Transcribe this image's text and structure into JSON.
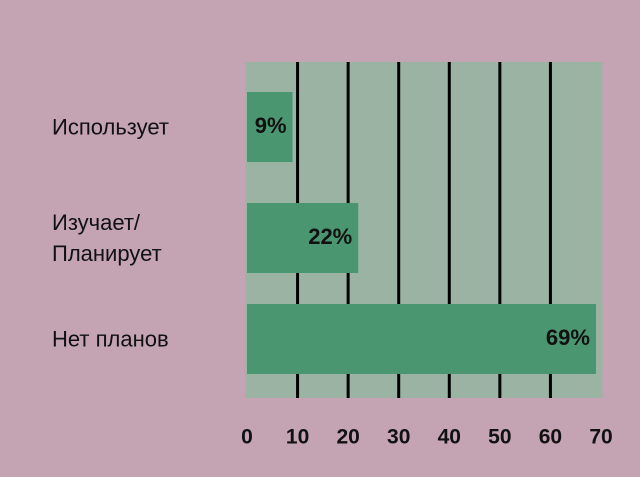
{
  "chart_data": {
    "type": "bar",
    "orientation": "horizontal",
    "categories": [
      "Использует",
      "Изучает/\nПланирует",
      "Нет планов"
    ],
    "values": [
      9,
      22,
      69
    ],
    "value_labels": [
      "9%",
      "22%",
      "69%"
    ],
    "color": "#4a9670",
    "xlim": [
      0,
      70
    ],
    "xticks": [
      0,
      10,
      20,
      30,
      40,
      50,
      60,
      70
    ],
    "grid": true
  }
}
